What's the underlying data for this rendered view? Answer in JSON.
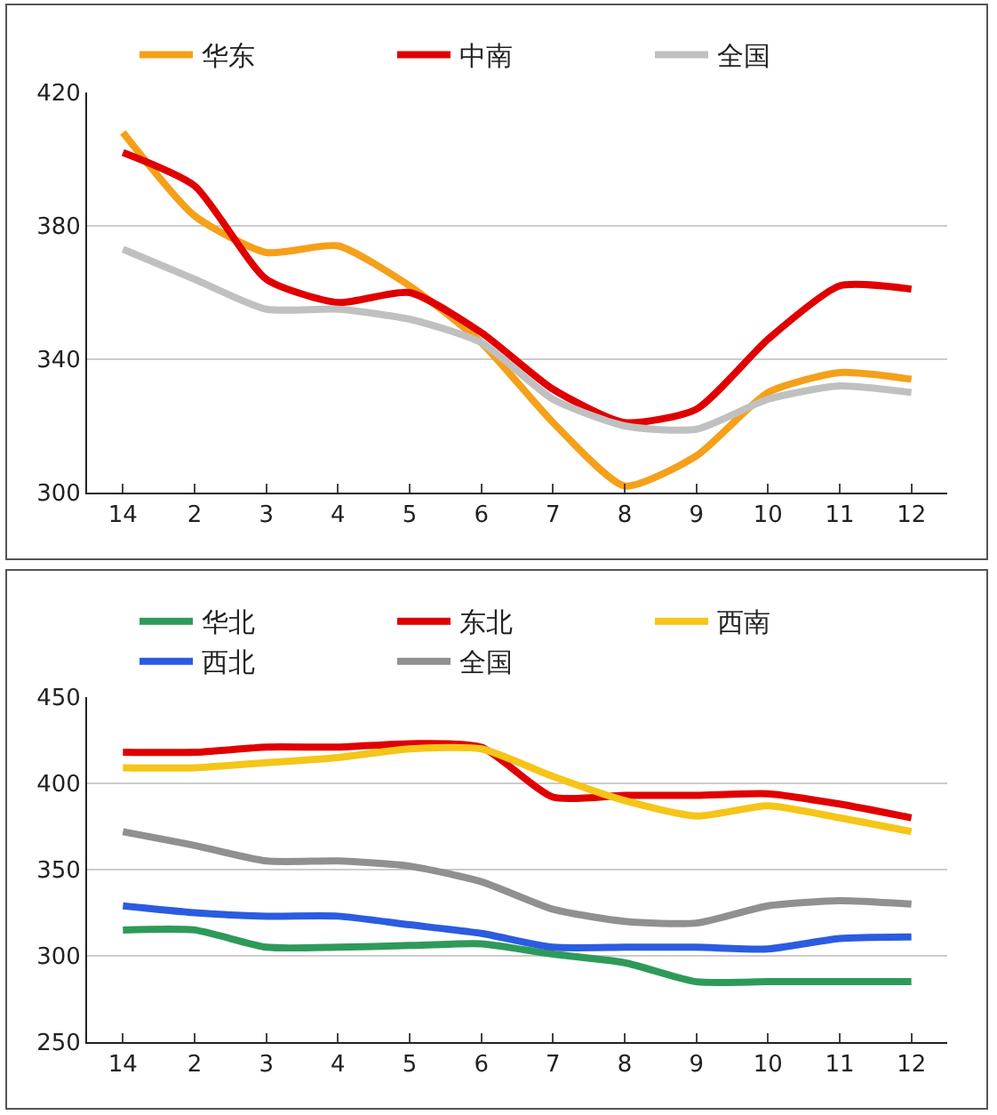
{
  "chart_data": [
    {
      "type": "line",
      "categories": [
        "14",
        "2",
        "3",
        "4",
        "5",
        "6",
        "7",
        "8",
        "9",
        "10",
        "11",
        "12"
      ],
      "ylim": [
        300,
        420
      ],
      "yticks": [
        300,
        340,
        380,
        420
      ],
      "grid": "y",
      "legend": "top",
      "marker": "none",
      "line_style": "solid",
      "series": [
        {
          "name": "华东",
          "color": "#f5a01a",
          "values": [
            408,
            383,
            372,
            374,
            362,
            345,
            321,
            302,
            311,
            330,
            336,
            334
          ]
        },
        {
          "name": "中南",
          "color": "#e00000",
          "values": [
            402,
            392,
            364,
            357,
            360,
            348,
            331,
            321,
            325,
            346,
            362,
            361
          ]
        },
        {
          "name": "全国",
          "color": "#c0c0c0",
          "values": [
            373,
            364,
            355,
            355,
            352,
            345,
            328,
            320,
            319,
            328,
            332,
            330
          ]
        }
      ]
    },
    {
      "type": "line",
      "categories": [
        "14",
        "2",
        "3",
        "4",
        "5",
        "6",
        "7",
        "8",
        "9",
        "10",
        "11",
        "12"
      ],
      "ylim": [
        250,
        450
      ],
      "yticks": [
        250,
        300,
        350,
        400,
        450
      ],
      "grid": "y",
      "legend": "top",
      "marker": "none",
      "line_style": "solid",
      "series": [
        {
          "name": "华北",
          "color": "#2e9a5a",
          "values": [
            315,
            315,
            305,
            305,
            306,
            307,
            301,
            296,
            285,
            285,
            285,
            285
          ]
        },
        {
          "name": "东北",
          "color": "#e00000",
          "values": [
            418,
            418,
            421,
            421,
            423,
            421,
            392,
            393,
            393,
            394,
            388,
            380
          ]
        },
        {
          "name": "西南",
          "color": "#f5c518",
          "values": [
            409,
            409,
            412,
            415,
            420,
            420,
            404,
            390,
            381,
            387,
            380,
            372
          ]
        },
        {
          "name": "西北",
          "color": "#2b5ce0",
          "values": [
            329,
            325,
            323,
            323,
            318,
            313,
            305,
            305,
            305,
            304,
            310,
            311
          ]
        },
        {
          "name": "全国",
          "color": "#909090",
          "values": [
            372,
            364,
            355,
            355,
            352,
            343,
            327,
            320,
            319,
            329,
            332,
            330
          ]
        }
      ]
    }
  ]
}
